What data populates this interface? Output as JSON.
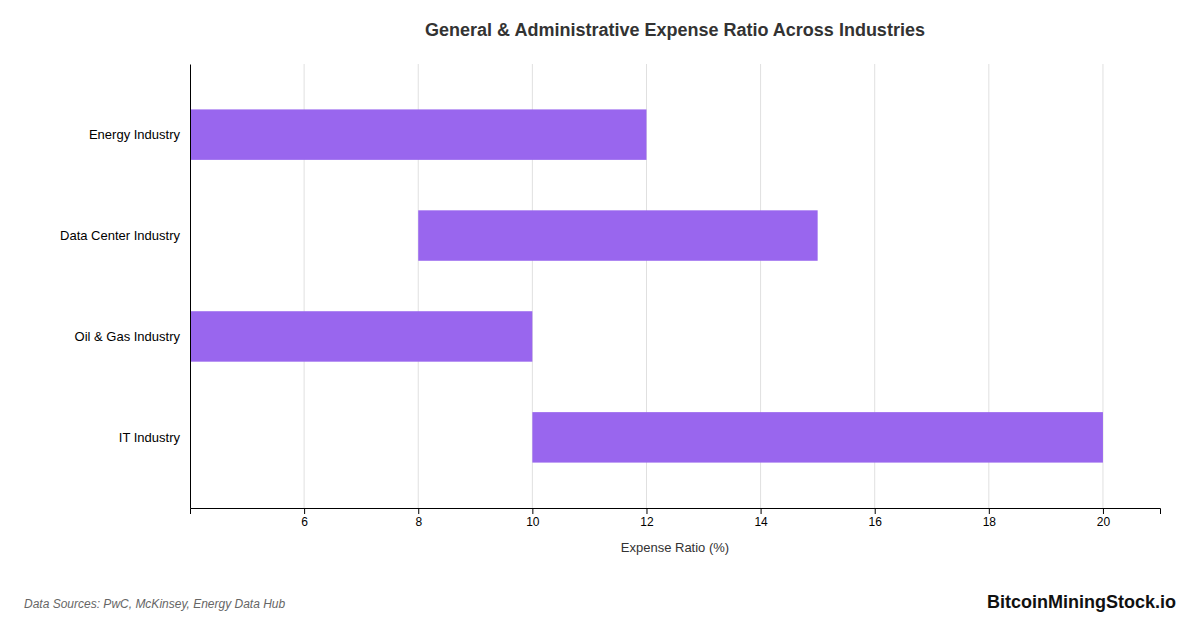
{
  "chart_data": {
    "type": "bar",
    "orientation": "horizontal",
    "title": "General & Administrative Expense Ratio Across Industries",
    "categories": [
      "Energy Industry",
      "Data Center Industry",
      "Oil & Gas Industry",
      "IT Industry"
    ],
    "starts": [
      4,
      8,
      4,
      10
    ],
    "values": [
      12,
      15,
      10,
      20
    ],
    "color": "#9966ee",
    "x_label": "Expense Ratio (%)",
    "xlim": [
      4,
      21
    ],
    "xticks": [
      6,
      8,
      10,
      12,
      14,
      16,
      18,
      20
    ],
    "grid": true,
    "annotations": [
      "Data Sources: PwC, McKinsey, Energy Data Hub",
      "BitcoinMiningStock.io"
    ]
  }
}
